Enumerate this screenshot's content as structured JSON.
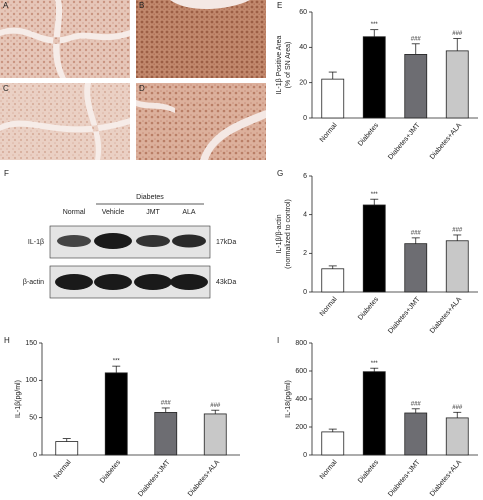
{
  "images": [
    {
      "label": "A"
    },
    {
      "label": "B"
    },
    {
      "label": "C"
    },
    {
      "label": "D"
    }
  ],
  "blot": {
    "label": "F",
    "group": "Diabetes",
    "columns": [
      "Normal",
      "Vehicle",
      "JMT",
      "ALA"
    ],
    "rows": [
      {
        "name": "IL-1β",
        "size": "17kDa"
      },
      {
        "name": "β-actin",
        "size": "43kDa"
      }
    ]
  },
  "chart_data": [
    {
      "type": "bar",
      "panel": "E",
      "ylabel": [
        "IL-1β Positive Area",
        "(% of SN Area)"
      ],
      "categories": [
        "Normal",
        "Diabetes",
        "Diabetes+JMT",
        "Diabetes+ALA"
      ],
      "values": [
        22,
        46,
        36,
        38
      ],
      "errors": [
        4,
        4,
        6,
        7
      ],
      "annotations": [
        null,
        "***",
        "###",
        "###"
      ],
      "colors": [
        "#ffffff",
        "#000000",
        "#6d6d72",
        "#c8c8c8"
      ],
      "ylim": [
        0,
        60
      ],
      "yticks": [
        0,
        20,
        40,
        60
      ]
    },
    {
      "type": "bar",
      "panel": "G",
      "ylabel": [
        "IL-1β/β-actin",
        "(normalized to control)"
      ],
      "categories": [
        "Normal",
        "Diabetes",
        "Diabetes+JMT",
        "Diabetes+ALA"
      ],
      "values": [
        1.2,
        4.5,
        2.5,
        2.65
      ],
      "errors": [
        0.15,
        0.3,
        0.3,
        0.3
      ],
      "annotations": [
        null,
        "***",
        "###",
        "###"
      ],
      "colors": [
        "#ffffff",
        "#000000",
        "#6d6d72",
        "#c8c8c8"
      ],
      "ylim": [
        0,
        6
      ],
      "yticks": [
        0,
        2,
        4,
        6
      ]
    },
    {
      "type": "bar",
      "panel": "H",
      "ylabel": [
        "IL-1β(pg/ml)"
      ],
      "categories": [
        "Normal",
        "Diabetes",
        "Diabetes+JMT",
        "Diabetes+ALA"
      ],
      "values": [
        18,
        110,
        57,
        55
      ],
      "errors": [
        4,
        9,
        6,
        5
      ],
      "annotations": [
        null,
        "***",
        "###",
        "###"
      ],
      "colors": [
        "#ffffff",
        "#000000",
        "#6d6d72",
        "#c8c8c8"
      ],
      "ylim": [
        0,
        150
      ],
      "yticks": [
        0,
        50,
        100,
        150
      ]
    },
    {
      "type": "bar",
      "panel": "I",
      "ylabel": [
        "IL-18(pg/ml)"
      ],
      "categories": [
        "Normal",
        "Diabetes",
        "Diabetes+JMT",
        "Diabetes+ALA"
      ],
      "values": [
        165,
        595,
        300,
        265
      ],
      "errors": [
        20,
        25,
        30,
        40
      ],
      "annotations": [
        null,
        "***",
        "###",
        "###"
      ],
      "colors": [
        "#ffffff",
        "#000000",
        "#6d6d72",
        "#c8c8c8"
      ],
      "ylim": [
        0,
        800
      ],
      "yticks": [
        0,
        200,
        400,
        600,
        800
      ]
    }
  ]
}
